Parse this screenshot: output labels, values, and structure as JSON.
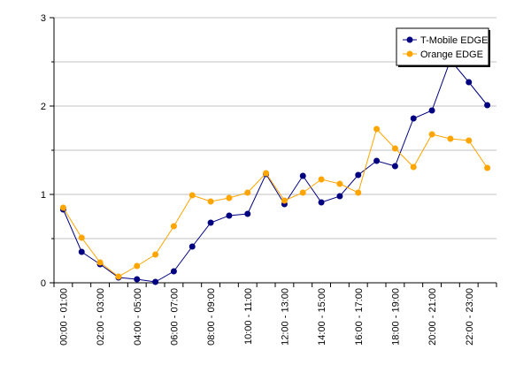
{
  "chart_data": {
    "type": "line",
    "title": "",
    "xlabel": "",
    "ylabel": "",
    "ylim": [
      0,
      3
    ],
    "yticks": [
      0,
      1,
      2,
      3
    ],
    "grid": "horizontal",
    "legend": "top-right",
    "x_tick_labels": [
      "00:00 - 01:00",
      "02:00 - 03:00",
      "04:00 - 05:00",
      "06:00 - 07:00",
      "08:00 - 09:00",
      "10:00 - 11:00",
      "12:00 - 13:00",
      "14:00 - 15:00",
      "16:00 - 17:00",
      "18:00 - 19:00",
      "20:00 - 21:00",
      "22:00 - 23:00"
    ],
    "series": [
      {
        "name": "T-Mobile EDGE",
        "color": "#000080",
        "values": [
          0.83,
          0.35,
          0.21,
          0.06,
          0.04,
          0.01,
          0.13,
          0.41,
          0.68,
          0.76,
          0.78,
          1.23,
          0.89,
          1.21,
          0.91,
          0.98,
          1.22,
          1.38,
          1.32,
          1.86,
          1.95,
          2.52,
          2.27,
          2.01
        ]
      },
      {
        "name": "Orange EDGE",
        "color": "#FFA500",
        "values": [
          0.85,
          0.51,
          0.23,
          0.07,
          0.19,
          0.32,
          0.64,
          0.99,
          0.92,
          0.96,
          1.02,
          1.24,
          0.93,
          1.02,
          1.17,
          1.12,
          1.02,
          1.74,
          1.52,
          1.31,
          1.68,
          1.63,
          1.61,
          1.3
        ]
      }
    ]
  }
}
